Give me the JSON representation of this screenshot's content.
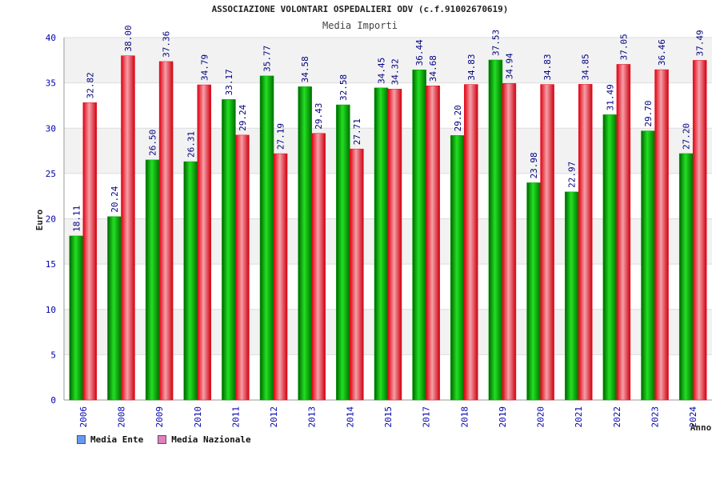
{
  "chart_data": {
    "type": "bar",
    "title": "ASSOCIAZIONE VOLONTARI OSPEDALIERI ODV (c.f.91002670619)",
    "subtitle": "Media Importi",
    "xlabel": "Anno",
    "ylabel": "Euro",
    "ylim": [
      0,
      40
    ],
    "yticks": [
      0,
      5,
      10,
      15,
      20,
      25,
      30,
      35,
      40
    ],
    "categories": [
      "2006",
      "2008",
      "2009",
      "2010",
      "2011",
      "2012",
      "2013",
      "2014",
      "2015",
      "2017",
      "2018",
      "2019",
      "2020",
      "2021",
      "2022",
      "2023",
      "2024"
    ],
    "series": [
      {
        "name": "Media Ente",
        "color": "#00a000",
        "legend_color": "#6699ee",
        "values": [
          18.11,
          20.24,
          26.5,
          26.31,
          33.17,
          35.77,
          34.58,
          32.58,
          34.45,
          36.44,
          29.2,
          37.53,
          23.98,
          22.97,
          31.49,
          29.7,
          27.2
        ]
      },
      {
        "name": "Media Nazionale",
        "color": "#e81020",
        "legend_color": "#e080c0",
        "values": [
          32.82,
          38.0,
          37.36,
          34.79,
          29.24,
          27.19,
          29.43,
          27.71,
          34.32,
          34.68,
          34.83,
          34.94,
          34.83,
          34.85,
          37.05,
          36.46,
          37.49
        ]
      }
    ],
    "grid": true,
    "legend_position": "bottom-left",
    "colors": {
      "tick_label": "#0000b0",
      "data_label": "#000080",
      "band": "#f2f2f2"
    }
  }
}
